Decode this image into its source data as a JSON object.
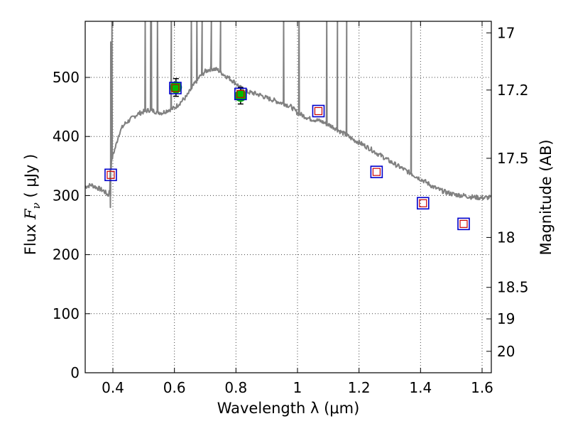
{
  "chart_data": {
    "type": "line",
    "title": "",
    "xlabel": "Wavelength  λ (μm)",
    "ylabel": "Flux  F_ν  ( μJy )",
    "ylabel_parts": {
      "prefix": "Flux  ",
      "symbol": "F",
      "subscript": "ν",
      "suffix": "  ( μJy )"
    },
    "y2label": "Magnitude (AB)",
    "xlim": [
      0.31,
      1.63
    ],
    "ylim": [
      0,
      595
    ],
    "grid": true,
    "x_ticks": [
      0.4,
      0.6,
      0.8,
      1.0,
      1.2,
      1.4,
      1.6
    ],
    "x_tick_labels": [
      "0.4",
      "0.6",
      "0.8",
      "1",
      "1.2",
      "1.4",
      "1.6"
    ],
    "y_ticks": [
      0,
      100,
      200,
      300,
      400,
      500
    ],
    "y_tick_labels": [
      "0",
      "100",
      "200",
      "300",
      "400",
      "500"
    ],
    "y2_ticks": [
      {
        "mag": 17.0,
        "label": "17"
      },
      {
        "mag": 17.2,
        "label": "17.2"
      },
      {
        "mag": 17.5,
        "label": "17.5"
      },
      {
        "mag": 18.0,
        "label": "18"
      },
      {
        "mag": 18.5,
        "label": "18.5"
      },
      {
        "mag": 19.0,
        "label": "19"
      },
      {
        "mag": 20.0,
        "label": "20"
      }
    ],
    "colors": {
      "spectrum": "#808080",
      "observed_fill": "#00bb00",
      "model_box": "#0000cc",
      "model_inner": "#cc0000",
      "error_bar": "#000000",
      "grid": "#444444"
    },
    "series": [
      {
        "name": "spectrum",
        "style": "line",
        "x": [
          0.31,
          0.33,
          0.35,
          0.37,
          0.38,
          0.385,
          0.39,
          0.393,
          0.396,
          0.4,
          0.41,
          0.42,
          0.43,
          0.44,
          0.46,
          0.48,
          0.5,
          0.52,
          0.54,
          0.56,
          0.58,
          0.6,
          0.62,
          0.64,
          0.66,
          0.68,
          0.7,
          0.72,
          0.74,
          0.76,
          0.78,
          0.8,
          0.82,
          0.84,
          0.86,
          0.88,
          0.9,
          0.92,
          0.94,
          0.96,
          0.98,
          1.0,
          1.02,
          1.04,
          1.06,
          1.08,
          1.1,
          1.12,
          1.14,
          1.16,
          1.18,
          1.2,
          1.22,
          1.24,
          1.26,
          1.28,
          1.3,
          1.32,
          1.34,
          1.36,
          1.38,
          1.4,
          1.42,
          1.44,
          1.46,
          1.48,
          1.5,
          1.52,
          1.54,
          1.56,
          1.58,
          1.6,
          1.63
        ],
        "y": [
          315,
          318,
          313,
          308,
          303,
          300,
          310,
          345,
          360,
          368,
          385,
          405,
          415,
          422,
          430,
          438,
          442,
          445,
          442,
          440,
          445,
          448,
          458,
          468,
          485,
          500,
          510,
          515,
          513,
          505,
          498,
          490,
          480,
          475,
          473,
          470,
          465,
          462,
          458,
          455,
          450,
          440,
          435,
          430,
          428,
          425,
          420,
          415,
          408,
          402,
          395,
          390,
          384,
          378,
          371,
          365,
          358,
          352,
          346,
          340,
          334,
          328,
          322,
          315,
          310,
          306,
          303,
          301,
          300,
          298,
          297,
          296,
          297
        ]
      },
      {
        "name": "observed",
        "style": "points-with-errors",
        "x": [
          0.605,
          0.815
        ],
        "y": [
          483,
          469
        ],
        "yerr": [
          15,
          14
        ]
      },
      {
        "name": "model-synthetic",
        "style": "open-squares",
        "x": [
          0.393,
          0.603,
          0.815,
          1.068,
          1.257,
          1.408,
          1.54
        ],
        "y": [
          335,
          482,
          472,
          443,
          340,
          287,
          252
        ]
      }
    ],
    "emission_lines": [
      {
        "x": 0.393,
        "peak": 560
      },
      {
        "x": 0.397,
        "peak": 595
      },
      {
        "x": 0.505,
        "peak": 595
      },
      {
        "x": 0.523,
        "peak": 595
      },
      {
        "x": 0.525,
        "peak": 595
      },
      {
        "x": 0.545,
        "peak": 595
      },
      {
        "x": 0.59,
        "peak": 595
      },
      {
        "x": 0.655,
        "peak": 595
      },
      {
        "x": 0.673,
        "peak": 595
      },
      {
        "x": 0.69,
        "peak": 595
      },
      {
        "x": 0.72,
        "peak": 595
      },
      {
        "x": 0.75,
        "peak": 595
      },
      {
        "x": 0.955,
        "peak": 595
      },
      {
        "x": 1.005,
        "peak": 595
      },
      {
        "x": 1.095,
        "peak": 595
      },
      {
        "x": 1.13,
        "peak": 595
      },
      {
        "x": 1.16,
        "peak": 595
      },
      {
        "x": 1.37,
        "peak": 595
      }
    ]
  }
}
